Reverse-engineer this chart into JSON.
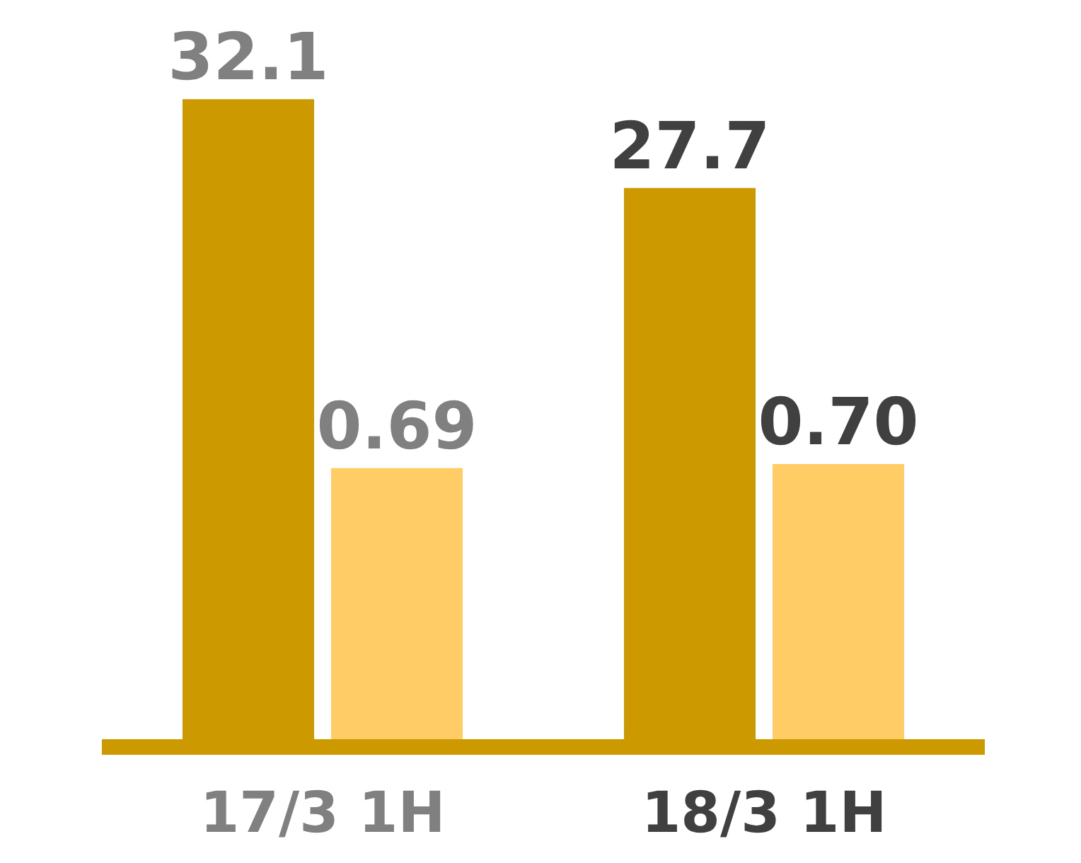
{
  "chart_data": {
    "type": "bar",
    "categories": [
      "17/3 1H",
      "18/3 1H"
    ],
    "series": [
      {
        "color": "#cc9900",
        "values": [
          32.1,
          27.7
        ],
        "value_labels": [
          "32.1",
          "27.7"
        ]
      },
      {
        "color": "#ffcc66",
        "values": [
          0.69,
          0.7
        ],
        "value_labels": [
          "0.69",
          "0.70"
        ],
        "axis": "y2"
      }
    ],
    "tick_labels": "x",
    "legend": false
  }
}
